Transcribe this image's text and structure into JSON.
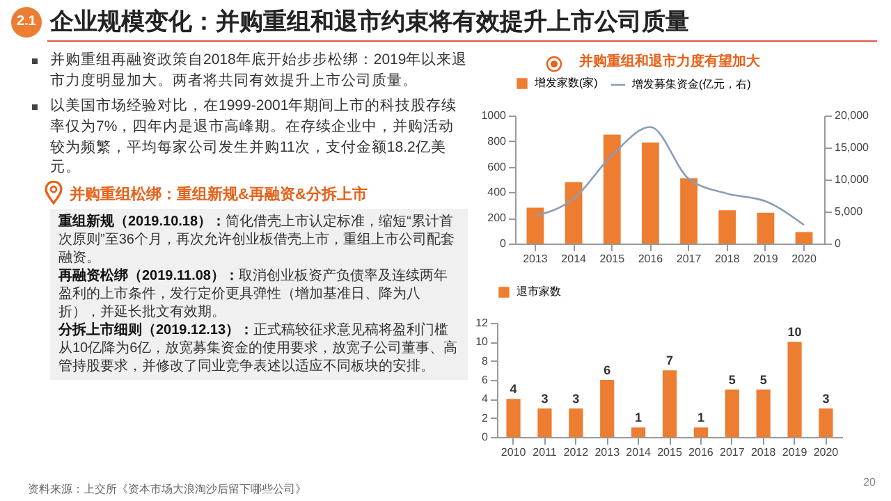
{
  "chart_data": [
    {
      "type": "bar",
      "title": "并购重组和退市力度有望加大",
      "categories": [
        "2013",
        "2014",
        "2015",
        "2016",
        "2017",
        "2018",
        "2019",
        "2020"
      ],
      "series": [
        {
          "name": "增发家数(家)",
          "type": "bar",
          "color": "#ed7d31",
          "values": [
            280,
            480,
            850,
            790,
            510,
            260,
            240,
            90
          ]
        },
        {
          "name": "增发募集资金(亿元，右)",
          "type": "line",
          "axis": "y2",
          "color": "#8c9cb8",
          "values": [
            4300,
            7000,
            13800,
            18200,
            10100,
            7800,
            6600,
            2900
          ]
        }
      ],
      "ylim": [
        0,
        1000
      ],
      "yticks": [
        0,
        200,
        400,
        600,
        800,
        1000
      ],
      "y2lim": [
        0,
        20000
      ],
      "y2ticks": [
        0,
        {
          "value": 5000,
          "label": "5,000"
        },
        {
          "value": 10000,
          "label": "10,000"
        },
        {
          "value": 15000,
          "label": "15,000"
        },
        {
          "value": 20000,
          "label": "20,000"
        }
      ],
      "legend": "top",
      "annotations": [
        "2.1",
        "企业规模变化：并购重组和退市约束将有效提升上市公司质量",
        "并购重组再融资政策自2018年底开始步步松绑：2019年以来退市力度明显加大。两者将共同有效提升上市公司质量。",
        "以美国市场经验对比，在1999-2001年期间上市的科技股存续率仅为7%，四年内是退市高峰期。在存续企业中，并购活动较为频繁，平均每家公司发生并购11次，支付金额18.2亿美元。",
        "并购重组松绑：重组新规&再融资&分拆上市",
        "重组新规（2019.10.18）：",
        "简化借壳上市认定标准，缩短“累计首次原则”至36个月，再次允许创业板借壳上市，重组上市公司配套融资。",
        "再融资松绑（2019.11.08）：",
        "取消创业板资产负债率及连续两年盈利的上市条件，发行定价更具弹性（增加基准日、降为八折），并延长批文有效期。",
        "分拆上市细则（2019.12.13）：",
        "正式稿较征求意见稿将盈利门槛从10亿降为6亿，放宽募集资金的使用要求，放宽子公司董事、高管持股要求，并修改了同业竞争表述以适应不同板块的安排。",
        "资料来源：上交所《资本市场大浪淘沙后留下哪些公司》",
        "20"
      ]
    },
    {
      "type": "bar",
      "categories": [
        "2010",
        "2011",
        "2012",
        "2013",
        "2014",
        "2015",
        "2016",
        "2017",
        "2018",
        "2019",
        "2020"
      ],
      "series": [
        {
          "name": "退市家数",
          "color": "#ed7d31",
          "values": [
            4,
            3,
            3,
            6,
            1,
            7,
            1,
            5,
            5,
            10,
            3
          ]
        }
      ],
      "ylim": [
        0,
        12
      ],
      "yticks": [
        0,
        2,
        4,
        6,
        8,
        10,
        12
      ],
      "data_labels": true,
      "legend": "top"
    }
  ]
}
